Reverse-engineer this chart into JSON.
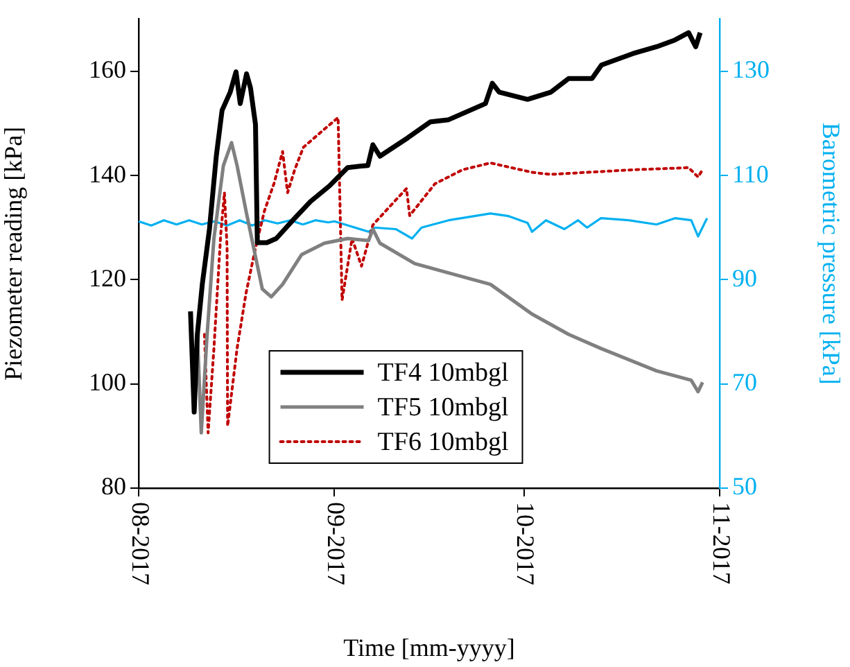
{
  "chart_data": {
    "type": "line",
    "xlabel": "Time [mm-yyyy]",
    "ylabel": "Piezometer reading [kPa]",
    "y2label": "Barometric pressure [kPa]",
    "xlim": [
      "2017-08-01",
      "2017-11-01"
    ],
    "xticks": [
      {
        "value": "2017-08-01",
        "label": "08-2017"
      },
      {
        "value": "2017-09-01",
        "label": "09-2017"
      },
      {
        "value": "2017-10-01",
        "label": "10-2017"
      },
      {
        "value": "2017-11-01",
        "label": "11-2017"
      }
    ],
    "ylim": [
      80,
      170
    ],
    "yticks": [
      80,
      100,
      120,
      140,
      160
    ],
    "y2lim": [
      50,
      140
    ],
    "y2ticks": [
      50,
      70,
      90,
      110,
      130
    ],
    "grid": false,
    "legend": "bottom",
    "marker": "none",
    "series": [
      {
        "name": "TF4 10mbgl",
        "color": "#000000",
        "line_style": "solid",
        "x": [
          "2017-08-09T05:00",
          "2017-08-09T19:00",
          "2017-08-10T07:00",
          "2017-08-11T02:00",
          "2017-08-12T05:00",
          "2017-08-13T07:00",
          "2017-08-14T05:00",
          "2017-08-15T12:00",
          "2017-08-16T10:00",
          "2017-08-17T02:00",
          "2017-08-18T02:00",
          "2017-08-18T17:00",
          "2017-08-19T12:00",
          "2017-08-19T19:00",
          "2017-08-21T07:00",
          "2017-08-22T19:00",
          "2017-08-25T10:00",
          "2017-08-28T05:00",
          "2017-08-31T05:00",
          "2017-09-03T02:00",
          "2017-09-05T05:00",
          "2017-09-06T07:00",
          "2017-09-07T02:00",
          "2017-09-08T05:00",
          "2017-09-12T14:00",
          "2017-09-16T05:00",
          "2017-09-19T02:00",
          "2017-09-24T22:00",
          "2017-09-26T00:00",
          "2017-09-27T02:00",
          "2017-10-01T14:00",
          "2017-10-05T07:00",
          "2017-10-08T02:00",
          "2017-10-11T19:00",
          "2017-10-13T07:00",
          "2017-10-18T07:00",
          "2017-10-22T00:00",
          "2017-10-24T22:00",
          "2017-10-27T02:00",
          "2017-10-28T05:00",
          "2017-10-28T22:00"
        ],
        "values": [
          113.9,
          94.6,
          109.5,
          119.2,
          129.7,
          143.7,
          152.5,
          156,
          159.9,
          153.8,
          159.5,
          156.8,
          149.8,
          127.1,
          127.1,
          127.9,
          131.4,
          135,
          138,
          141.5,
          141.8,
          141.9,
          145.9,
          143.7,
          147.2,
          150.3,
          150.7,
          153.8,
          157.7,
          156,
          154.6,
          156,
          158.6,
          158.6,
          161.2,
          163.4,
          164.7,
          166,
          167.4,
          164.7,
          167.4
        ]
      },
      {
        "name": "TF5 10mbgl",
        "color": "#808080",
        "line_style": "solid",
        "x": [
          "2017-08-10T08:00",
          "2017-08-10T22:00",
          "2017-08-11T19:00",
          "2017-08-12T22:00",
          "2017-08-14T10:00",
          "2017-08-15T17:00",
          "2017-08-16T14:00",
          "2017-08-18T00:00",
          "2017-08-19T12:00",
          "2017-08-20T14:00",
          "2017-08-22T00:00",
          "2017-08-23T19:00",
          "2017-08-26T19:00",
          "2017-08-30T10:00",
          "2017-09-03T02:00",
          "2017-09-06T10:00",
          "2017-09-07T02:00",
          "2017-09-08T05:00",
          "2017-09-13T17:00",
          "2017-09-19T02:00",
          "2017-09-25T17:00",
          "2017-10-02T07:00",
          "2017-10-08T02:00",
          "2017-10-13T05:00",
          "2017-10-22T00:00",
          "2017-10-27T12:00",
          "2017-10-28T14:00",
          "2017-10-29T07:00"
        ],
        "values": [
          108.6,
          90.6,
          108.6,
          127.9,
          141.9,
          146.3,
          141.9,
          133.2,
          124.4,
          118.2,
          116.7,
          119.1,
          124.8,
          127,
          127.9,
          127.5,
          129.7,
          127,
          123.1,
          121.3,
          119.1,
          113.4,
          109.5,
          106.8,
          102.5,
          100.7,
          98.5,
          100.3
        ]
      },
      {
        "name": "TF6 10mbgl",
        "color": "#c00000",
        "line_style": "dotted",
        "x": [
          "2017-08-11T10:00",
          "2017-08-12T00:00",
          "2017-08-12T22:00",
          "2017-08-14T00:00",
          "2017-08-14T14:00",
          "2017-08-15T00:00",
          "2017-08-15T02:00",
          "2017-08-16T14:00",
          "2017-08-18T00:00",
          "2017-08-19T12:00",
          "2017-08-20T22:00",
          "2017-08-22T10:00",
          "2017-08-23T19:00",
          "2017-08-24T14:00",
          "2017-08-25T17:00",
          "2017-08-27T02:00",
          "2017-08-30T10:00",
          "2017-09-01T14:00",
          "2017-09-02T05:00",
          "2017-09-03T19:00",
          "2017-09-05T07:00",
          "2017-09-07T02:00",
          "2017-09-10T10:00",
          "2017-09-12T10:00",
          "2017-09-12T22:00",
          "2017-09-16T22:00",
          "2017-09-21T07:00",
          "2017-09-25T17:00",
          "2017-10-02T07:00",
          "2017-10-05T05:00",
          "2017-10-11T00:00",
          "2017-10-18T10:00",
          "2017-10-27T02:00",
          "2017-10-28T14:00",
          "2017-10-29T07:00"
        ],
        "values": [
          109.5,
          90.6,
          106.8,
          128.8,
          136.7,
          126.1,
          91.9,
          106.8,
          117.4,
          126.1,
          133.2,
          138.4,
          144.6,
          136.7,
          141.1,
          145.4,
          148.9,
          151.1,
          116.1,
          127.9,
          122.6,
          130.5,
          134.9,
          137.5,
          132.3,
          138.4,
          141.1,
          142.4,
          140.6,
          140.2,
          140.6,
          141.1,
          141.5,
          139.7,
          141.1
        ]
      },
      {
        "color": "#00b0f0",
        "line_style": "solid",
        "axis": "y2",
        "x": [
          "2017-08-01",
          "2017-08-03",
          "2017-08-05",
          "2017-08-07",
          "2017-08-09",
          "2017-08-11",
          "2017-08-13",
          "2017-08-15",
          "2017-08-17",
          "2017-08-19",
          "2017-08-21",
          "2017-08-23",
          "2017-08-25",
          "2017-08-27",
          "2017-08-29",
          "2017-08-31",
          "2017-09-01",
          "2017-09-06T10:00",
          "2017-09-07T10:00",
          "2017-09-10T17:00",
          "2017-09-13T07:00",
          "2017-09-14T19:00",
          "2017-09-19T02:00",
          "2017-09-25T17:00",
          "2017-09-28T14:00",
          "2017-10-01T14:00",
          "2017-10-02T07:00",
          "2017-10-04T12:00",
          "2017-10-07T10:00",
          "2017-10-09T14:00",
          "2017-10-11T00:00",
          "2017-10-13T05:00",
          "2017-10-17T14:00",
          "2017-10-22T00:00",
          "2017-10-24T22:00",
          "2017-10-27T12:00",
          "2017-10-28T14:00",
          "2017-10-30T00:00"
        ],
        "values": [
          101.2,
          100.4,
          101.4,
          100.6,
          101.4,
          100.6,
          101.2,
          100.4,
          101.4,
          100.4,
          101.4,
          100.8,
          101.4,
          100.6,
          101.4,
          101,
          101.2,
          99.2,
          100,
          99.7,
          97.9,
          100,
          101.4,
          102.7,
          102.2,
          100.9,
          99.2,
          101.4,
          99.7,
          101.4,
          100,
          101.8,
          101.4,
          100.6,
          101.8,
          101.4,
          98.3,
          101.8
        ]
      }
    ]
  }
}
